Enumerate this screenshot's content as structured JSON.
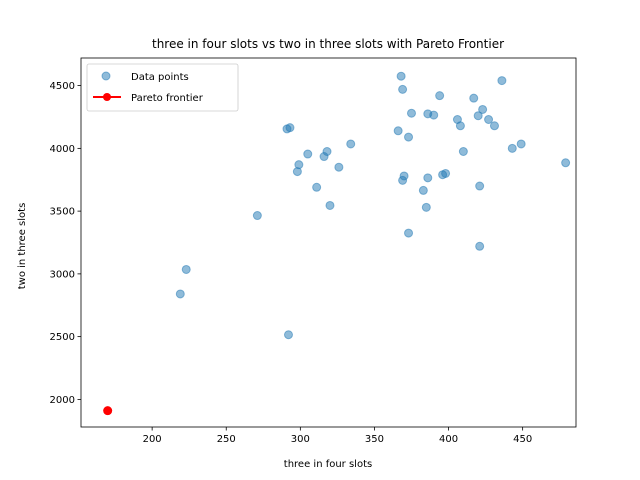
{
  "chart_data": {
    "type": "scatter",
    "title": "three in four slots vs two in three slots with Pareto Frontier",
    "xlabel": "three in four slots",
    "ylabel": "two in three slots",
    "xlim": [
      152,
      486
    ],
    "ylim": [
      1780,
      4720
    ],
    "xticks": [
      200,
      250,
      300,
      350,
      400,
      450
    ],
    "yticks": [
      2000,
      2500,
      3000,
      3500,
      4000,
      4500
    ],
    "grid": false,
    "legend_position": "upper-left",
    "colors": {
      "data_points": "#1f77b4",
      "pareto": "#ff0000"
    },
    "series": [
      {
        "name": "Data points",
        "points": [
          [
            219,
            2840
          ],
          [
            223,
            3035
          ],
          [
            271,
            3465
          ],
          [
            292,
            2515
          ],
          [
            291,
            4155
          ],
          [
            293,
            4165
          ],
          [
            298,
            3815
          ],
          [
            299,
            3870
          ],
          [
            305,
            3955
          ],
          [
            311,
            3690
          ],
          [
            316,
            3935
          ],
          [
            318,
            3975
          ],
          [
            320,
            3545
          ],
          [
            326,
            3850
          ],
          [
            334,
            4035
          ],
          [
            366,
            4140
          ],
          [
            368,
            4575
          ],
          [
            369,
            4470
          ],
          [
            369,
            3745
          ],
          [
            370,
            3780
          ],
          [
            373,
            4090
          ],
          [
            373,
            3325
          ],
          [
            375,
            4280
          ],
          [
            383,
            3665
          ],
          [
            385,
            3530
          ],
          [
            386,
            3765
          ],
          [
            386,
            4275
          ],
          [
            390,
            4265
          ],
          [
            394,
            4420
          ],
          [
            396,
            3790
          ],
          [
            398,
            3800
          ],
          [
            406,
            4230
          ],
          [
            408,
            4180
          ],
          [
            410,
            3975
          ],
          [
            417,
            4400
          ],
          [
            420,
            4260
          ],
          [
            421,
            3220
          ],
          [
            421,
            3700
          ],
          [
            423,
            4310
          ],
          [
            427,
            4230
          ],
          [
            431,
            4180
          ],
          [
            436,
            4540
          ],
          [
            443,
            4000
          ],
          [
            449,
            4035
          ],
          [
            479,
            3885
          ]
        ]
      },
      {
        "name": "Pareto frontier",
        "points": [
          [
            170,
            1910
          ]
        ]
      }
    ]
  }
}
